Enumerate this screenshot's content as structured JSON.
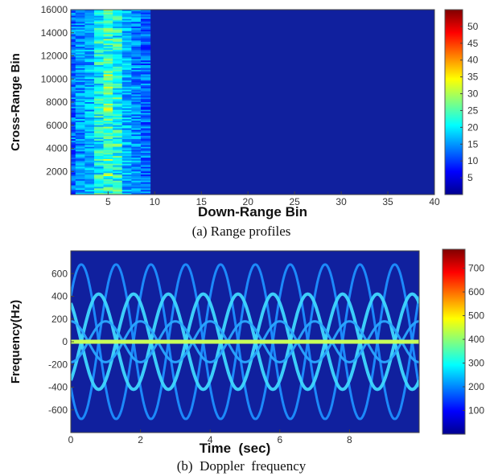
{
  "chart_data": [
    {
      "type": "heatmap",
      "caption": "(a)  Range  profiles",
      "xlabel": "Down-Range Bin",
      "ylabel": "Cross-Range Bin",
      "xlim": [
        1,
        40
      ],
      "ylim": [
        0,
        16000
      ],
      "xticks": [
        5,
        10,
        15,
        20,
        25,
        30,
        35,
        40
      ],
      "yticks": [
        2000,
        4000,
        6000,
        8000,
        10000,
        12000,
        14000,
        16000
      ],
      "colorbar": {
        "range": [
          0,
          55
        ],
        "ticks": [
          5,
          10,
          15,
          20,
          25,
          30,
          35,
          40,
          45,
          50
        ]
      },
      "colormap": "jet",
      "background_color": "#10209e",
      "energy_band_bins": [
        1,
        8
      ],
      "peak_bin": 5
    },
    {
      "type": "heatmap",
      "caption": "(b)  Doppler  frequency",
      "xlabel": "Time  (sec)",
      "ylabel": "Frequency(Hz)",
      "xlim": [
        0,
        10
      ],
      "ylim": [
        -800,
        800
      ],
      "xticks": [
        0,
        2,
        4,
        6,
        8
      ],
      "yticks": [
        600,
        400,
        200,
        0,
        -200,
        -400,
        -600
      ],
      "colorbar": {
        "range": [
          0,
          780
        ],
        "ticks": [
          100,
          200,
          300,
          400,
          500,
          600,
          700
        ]
      },
      "colormap": "jet",
      "background_color": "#10209e",
      "zero_line_hz": 0,
      "sinusoids": [
        {
          "amplitude_hz": 680,
          "period_sec": 2.0,
          "phase_sec": 0.8
        },
        {
          "amplitude_hz": 680,
          "period_sec": 2.0,
          "phase_sec": 1.8
        },
        {
          "amplitude_hz": 420,
          "period_sec": 2.0,
          "phase_sec": 0.3
        },
        {
          "amplitude_hz": 420,
          "period_sec": 2.0,
          "phase_sec": 1.3
        },
        {
          "amplitude_hz": 180,
          "period_sec": 2.0,
          "phase_sec": 0.5
        },
        {
          "amplitude_hz": 180,
          "period_sec": 2.0,
          "phase_sec": 1.5
        }
      ]
    }
  ]
}
